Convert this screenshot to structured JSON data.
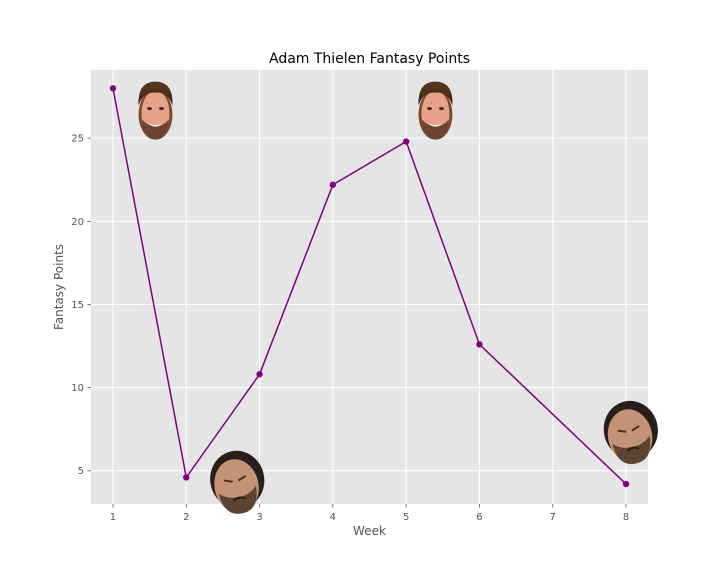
{
  "chart_data": {
    "type": "line",
    "title": "Adam Thielen Fantasy Points",
    "xlabel": "Week",
    "ylabel": "Fantasy Points",
    "x": [
      1,
      2,
      3,
      4,
      5,
      6,
      8
    ],
    "xlim": [
      0.7,
      8.3
    ],
    "ylim": [
      3,
      29.1
    ],
    "xticks": [
      1,
      2,
      3,
      4,
      5,
      6,
      7,
      8
    ],
    "yticks": [
      5,
      10,
      15,
      20,
      25
    ],
    "grid": true,
    "series": [
      {
        "values": [
          28.0,
          4.6,
          10.8,
          22.2,
          24.8,
          12.6,
          4.2
        ],
        "color": "#800080"
      }
    ],
    "annotations": [
      {
        "kind": "happy-face-icon",
        "x": 1.58,
        "y": 26.6
      },
      {
        "kind": "happy-face-icon",
        "x": 5.4,
        "y": 26.6
      },
      {
        "kind": "sad-face-icon",
        "x": 2.68,
        "y": 4.2
      },
      {
        "kind": "sad-face-icon",
        "x": 8.05,
        "y": 7.2
      }
    ],
    "colors": {
      "plot_bg": "#e5e5e5",
      "grid": "#ffffff",
      "line": "#800080",
      "marker": "#800080"
    }
  }
}
